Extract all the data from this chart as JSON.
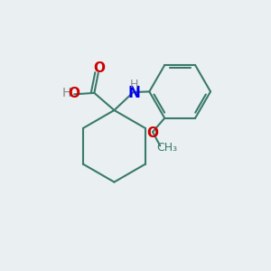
{
  "background_color": "#eaeff2",
  "bond_color": "#3a7a6a",
  "atom_colors": {
    "O": "#cc0000",
    "N": "#0000ee",
    "H": "#888888"
  },
  "figsize": [
    3.0,
    3.0
  ],
  "dpi": 100,
  "bond_lw": 1.5
}
